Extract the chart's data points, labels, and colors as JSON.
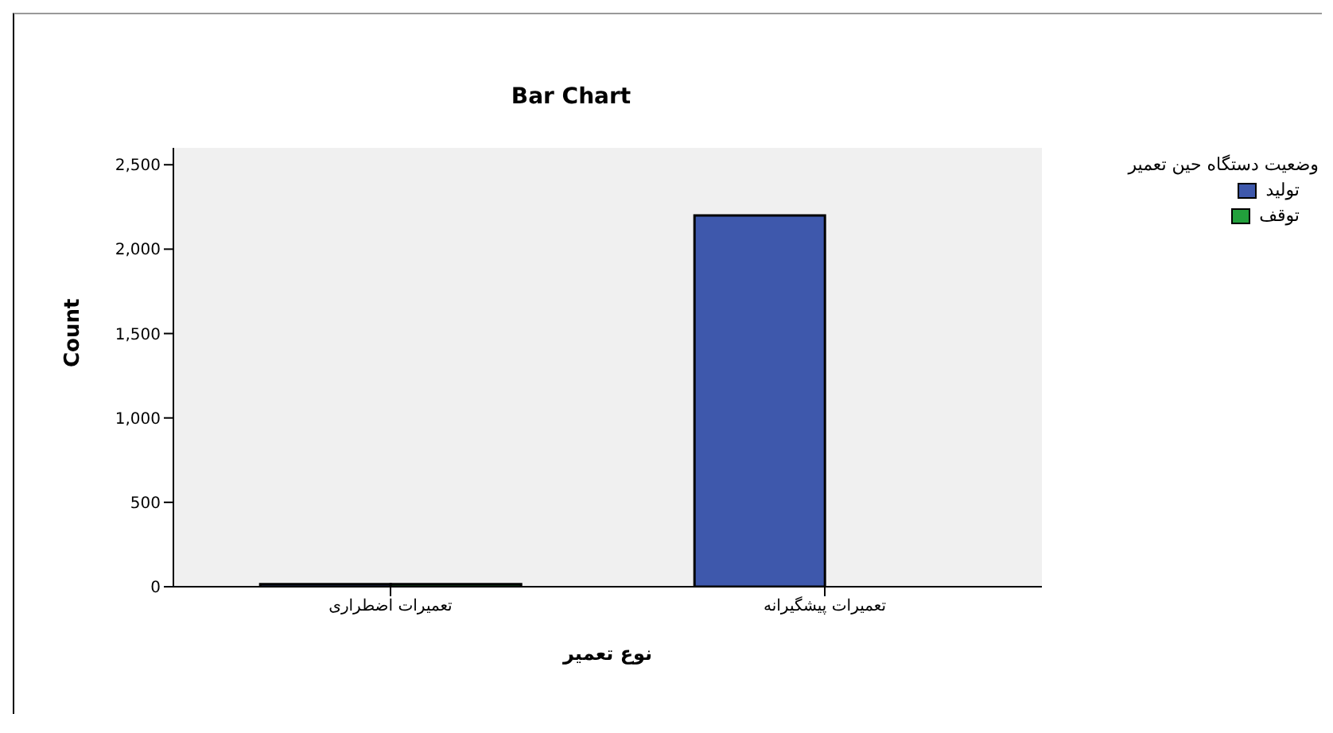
{
  "chart_data": {
    "type": "bar",
    "title": "Bar Chart",
    "xlabel": "نوع تعمیر",
    "ylabel": "Count",
    "legend_title": "وضعیت دستگاه حین تعمیر",
    "categories": [
      "تعمیرات اضطراری",
      "تعمیرات پیشگیرانه"
    ],
    "series": [
      {
        "name": "تولید",
        "color": "#3e58ac",
        "values": [
          15,
          2200
        ]
      },
      {
        "name": "توقف",
        "color": "#22a03c",
        "values": [
          15,
          0
        ]
      }
    ],
    "ylim": [
      0,
      2600
    ],
    "yticks": [
      0,
      {
        "value": 500,
        "label": "500"
      },
      {
        "value": 1000,
        "label": "1,000"
      },
      {
        "value": 1500,
        "label": "1,500"
      },
      {
        "value": 2000,
        "label": "2,000"
      },
      {
        "value": 2500,
        "label": "2,500"
      }
    ],
    "grid": false,
    "legend": "top right"
  }
}
